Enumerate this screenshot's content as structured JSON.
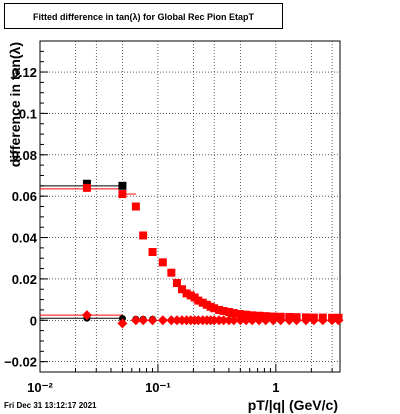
{
  "title": "Fitted difference in tan(λ) for Global Rec Pion EtapT",
  "footer_timestamp": "Fri Dec 31 13:12:17 2021",
  "chart_data": {
    "type": "scatter",
    "title": "Fitted difference in tan(λ) for Global Rec Pion EtapT",
    "xlabel": "pT/|q| (GeV/c)",
    "ylabel": "difference in tan(λ)",
    "x_scale": "log",
    "xlim": [
      0.01,
      3.5
    ],
    "ylim": [
      -0.025,
      0.135
    ],
    "grid": true,
    "x_tick_labels": [
      "10⁻²",
      "10⁻¹",
      "1"
    ],
    "y_ticks": [
      -0.02,
      0,
      0.02,
      0.04,
      0.06,
      0.08,
      0.1,
      0.12
    ],
    "y_tick_labels": [
      "−0.02",
      "0",
      "0.02",
      "0.04",
      "0.06",
      "0.08",
      "0.1",
      "0.12"
    ],
    "series": [
      {
        "marker": "square",
        "color": "#000000",
        "x": [
          0.025,
          0.05
        ],
        "y": [
          0.066,
          0.065
        ]
      },
      {
        "marker": "square",
        "color": "#ff0000",
        "x": [
          0.025,
          0.05,
          0.065,
          0.075,
          0.09,
          0.11,
          0.13,
          0.145,
          0.16,
          0.175,
          0.19,
          0.205,
          0.22,
          0.24,
          0.26,
          0.28,
          0.3,
          0.33,
          0.36,
          0.4,
          0.44,
          0.5,
          0.56,
          0.63,
          0.72,
          0.82,
          0.95,
          1.1,
          1.3,
          1.5,
          1.8,
          2.1,
          2.5,
          3.0,
          3.4
        ],
        "y": [
          0.064,
          0.061,
          0.055,
          0.041,
          0.033,
          0.028,
          0.023,
          0.018,
          0.015,
          0.013,
          0.012,
          0.011,
          0.0095,
          0.0085,
          0.0075,
          0.0065,
          0.0058,
          0.005,
          0.0045,
          0.004,
          0.0035,
          0.003,
          0.0027,
          0.0024,
          0.0022,
          0.002,
          0.0018,
          0.0017,
          0.0016,
          0.0015,
          0.0014,
          0.0013,
          0.0013,
          0.0012,
          0.0012
        ]
      },
      {
        "marker": "circle",
        "color": "#000000",
        "x": [
          0.025,
          0.05,
          0.065,
          0.075,
          0.09
        ],
        "y": [
          0.001,
          0.0008,
          0.0005,
          0.0005,
          0.0005
        ]
      },
      {
        "marker": "diamond",
        "color": "#ff0000",
        "x": [
          0.025,
          0.05,
          0.065,
          0.075,
          0.09,
          0.11,
          0.13,
          0.145,
          0.16,
          0.175,
          0.19,
          0.205,
          0.22,
          0.24,
          0.26,
          0.28,
          0.3,
          0.33,
          0.36,
          0.4,
          0.44,
          0.5,
          0.56,
          0.63,
          0.72,
          0.82,
          0.95,
          1.1,
          1.3,
          1.5,
          1.8,
          2.1,
          2.5,
          3.0,
          3.4
        ],
        "y": [
          0.0025,
          -0.0015,
          0.0,
          0.0,
          0.0,
          0.0,
          0.0,
          0.0,
          0.0,
          0.0,
          0.0,
          0.0,
          0.0,
          0.0,
          0.0,
          0.0,
          0.0,
          0.0,
          0.0,
          0.0,
          0.0,
          0.0,
          0.0,
          0.0,
          0.0,
          0.0,
          0.0,
          0.0,
          0.0,
          0.0,
          0.0,
          0.0,
          0.0,
          0.0,
          0.0
        ]
      }
    ],
    "reference_lines": [
      {
        "color": "#000000",
        "x": [
          0.01,
          0.05
        ],
        "y": [
          0.065,
          0.065
        ]
      },
      {
        "color": "#ff0000",
        "x": [
          0.01,
          0.05
        ],
        "y": [
          0.0635,
          0.0635
        ]
      },
      {
        "color": "#ff0000",
        "x": [
          0.05,
          0.065
        ],
        "y": [
          0.061,
          0.061
        ]
      },
      {
        "color": "#000000",
        "x": [
          0.01,
          0.05
        ],
        "y": [
          0.001,
          0.001
        ]
      },
      {
        "color": "#ff0000",
        "x": [
          0.01,
          0.05
        ],
        "y": [
          0.0025,
          0.0025
        ]
      }
    ]
  }
}
